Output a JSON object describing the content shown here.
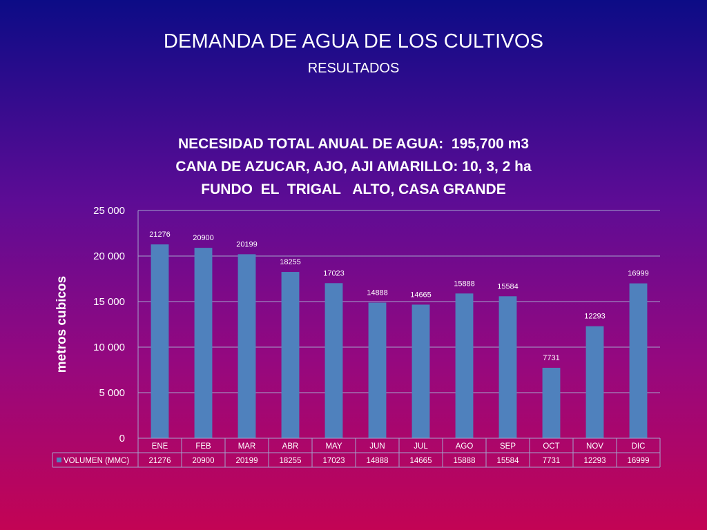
{
  "slide": {
    "title": "DEMANDA  DE AGUA DE LOS CULTIVOS",
    "subtitle": "RESULTADOS"
  },
  "chart_data": {
    "type": "bar",
    "title_lines": [
      "NECESIDAD TOTAL ANUAL DE AGUA:  195,700 m3",
      "CANA DE AZUCAR, AJO, AJI AMARILLO: 10, 3, 2 ha",
      "FUNDO  EL  TRIGAL   ALTO, CASA GRANDE"
    ],
    "ylabel": "metros cubicos",
    "ylim": [
      0,
      25000
    ],
    "yticks": [
      0,
      5000,
      10000,
      15000,
      20000,
      25000
    ],
    "ytick_labels": [
      "0",
      "5 000",
      "10 000",
      "15 000",
      "20 000",
      "25 000"
    ],
    "grid": true,
    "categories": [
      "ENE",
      "FEB",
      "MAR",
      "ABR",
      "MAY",
      "JUN",
      "JUL",
      "AGO",
      "SEP",
      "OCT",
      "NOV",
      "DIC"
    ],
    "series": [
      {
        "name": "VOLUMEN (MMC)",
        "values": [
          21276,
          20900,
          20199,
          18255,
          17023,
          14888,
          14665,
          15888,
          15584,
          7731,
          12293,
          16999
        ],
        "color": "#4f81bd"
      }
    ],
    "data_table": true
  }
}
